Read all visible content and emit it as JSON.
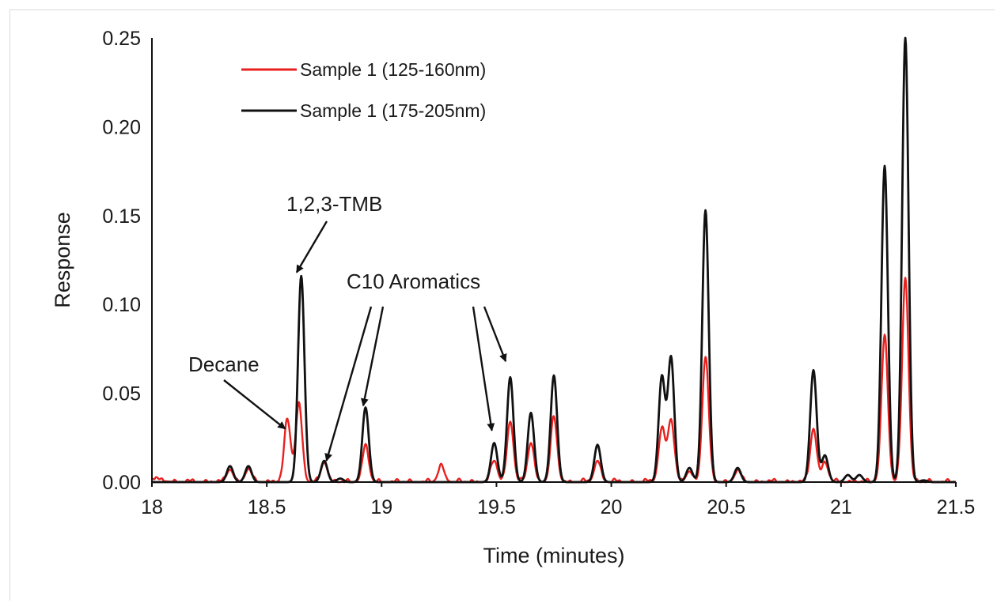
{
  "chart_data": {
    "type": "line",
    "xlabel": "Time (minutes)",
    "ylabel": "Response",
    "xlim": [
      18,
      21.5
    ],
    "ylim": [
      0,
      0.25
    ],
    "x_ticks": [
      "18",
      "18.5",
      "19",
      "19.5",
      "20",
      "20.5",
      "21",
      "21.5"
    ],
    "y_ticks": [
      "0.00",
      "0.05",
      "0.10",
      "0.15",
      "0.20",
      "0.25"
    ],
    "grid": false,
    "legend_position": "top-left",
    "series": [
      {
        "name": "Sample 1 (125-160nm)",
        "color": "#e8211f",
        "peaks": [
          [
            18.34,
            0.007
          ],
          [
            18.42,
            0.007
          ],
          [
            18.59,
            0.035
          ],
          [
            18.64,
            0.044
          ],
          [
            18.75,
            0.011
          ],
          [
            18.93,
            0.02
          ],
          [
            19.26,
            0.009
          ],
          [
            19.49,
            0.012
          ],
          [
            19.56,
            0.034
          ],
          [
            19.65,
            0.022
          ],
          [
            19.75,
            0.036
          ],
          [
            19.94,
            0.012
          ],
          [
            20.22,
            0.03
          ],
          [
            20.26,
            0.035
          ],
          [
            20.34,
            0.006
          ],
          [
            20.41,
            0.07
          ],
          [
            20.55,
            0.006
          ],
          [
            20.88,
            0.03
          ],
          [
            20.93,
            0.011
          ],
          [
            21.19,
            0.082
          ],
          [
            21.28,
            0.115
          ]
        ],
        "baseline_noise": 0.002
      },
      {
        "name": "Sample 1 (175-205nm)",
        "color": "#111111",
        "peaks": [
          [
            18.34,
            0.009
          ],
          [
            18.42,
            0.009
          ],
          [
            18.65,
            0.116
          ],
          [
            18.75,
            0.012
          ],
          [
            18.82,
            0.002
          ],
          [
            18.93,
            0.042
          ],
          [
            19.49,
            0.022
          ],
          [
            19.56,
            0.059
          ],
          [
            19.65,
            0.039
          ],
          [
            19.75,
            0.06
          ],
          [
            19.94,
            0.021
          ],
          [
            20.22,
            0.059
          ],
          [
            20.26,
            0.07
          ],
          [
            20.34,
            0.008
          ],
          [
            20.41,
            0.153
          ],
          [
            20.55,
            0.008
          ],
          [
            20.88,
            0.063
          ],
          [
            20.93,
            0.015
          ],
          [
            21.03,
            0.004
          ],
          [
            21.08,
            0.004
          ],
          [
            21.19,
            0.178
          ],
          [
            21.28,
            0.25
          ],
          [
            21.36,
            0.001
          ]
        ],
        "baseline_noise": 0
      }
    ],
    "annotations": [
      {
        "text": "Decane",
        "target": [
          18.58,
          0.03
        ]
      },
      {
        "text": "1,2,3-TMB",
        "target": [
          18.63,
          0.118
        ]
      },
      {
        "text": "C10 Aromatics",
        "targets": [
          [
            18.76,
            0.012
          ],
          [
            18.92,
            0.043
          ],
          [
            19.48,
            0.029
          ],
          [
            19.54,
            0.068
          ]
        ]
      }
    ]
  }
}
